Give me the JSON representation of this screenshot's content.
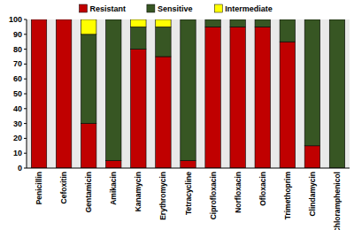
{
  "chart_data": {
    "type": "bar",
    "stacked": true,
    "legend": "top",
    "categories": [
      "Penicillin",
      "Cefoxitin",
      "Gentamicin",
      "Amikacin",
      "Kanamycin",
      "Erythromycin",
      "Tetracycline",
      "Ciprofloxacin",
      "Norfloxacin",
      "Ofloxacin",
      "Trimethoprim",
      "Clindamycin",
      "Chloramphenicol"
    ],
    "series": [
      {
        "name": "Resistant",
        "color": "#c00000",
        "values": [
          100,
          100,
          30,
          5,
          80,
          75,
          5,
          95,
          95,
          95,
          85,
          15,
          0
        ]
      },
      {
        "name": "Sensitive",
        "color": "#375623",
        "values": [
          0,
          0,
          60,
          95,
          15,
          20,
          95,
          5,
          5,
          5,
          15,
          85,
          100
        ]
      },
      {
        "name": "Intermediate",
        "color": "#ffff00",
        "values": [
          0,
          0,
          10,
          0,
          5,
          5,
          0,
          0,
          0,
          0,
          0,
          0,
          0
        ]
      }
    ],
    "ylim": [
      0,
      100
    ],
    "yticks": [
      0,
      10,
      20,
      30,
      40,
      50,
      60,
      70,
      80,
      90,
      100
    ],
    "grid": false
  }
}
